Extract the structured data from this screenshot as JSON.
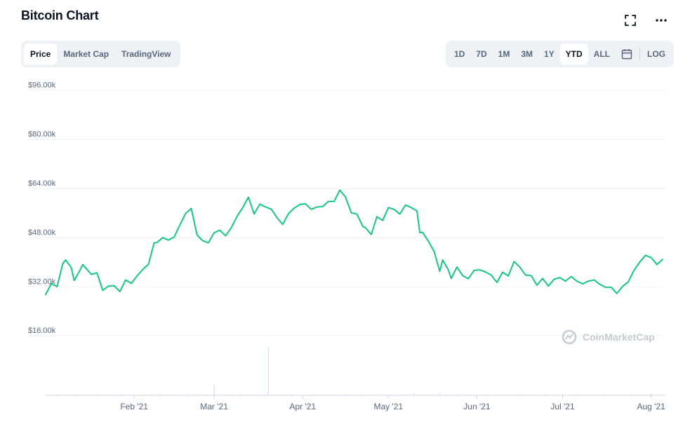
{
  "header": {
    "title": "Bitcoin Chart",
    "fullscreen_icon": "expand-icon",
    "more_icon": "more-horizontal-icon"
  },
  "tabs": [
    {
      "label": "Price",
      "active": true
    },
    {
      "label": "Market Cap",
      "active": false
    },
    {
      "label": "TradingView",
      "active": false
    }
  ],
  "ranges": [
    {
      "label": "1D",
      "active": false
    },
    {
      "label": "7D",
      "active": false
    },
    {
      "label": "1M",
      "active": false
    },
    {
      "label": "3M",
      "active": false
    },
    {
      "label": "1Y",
      "active": false
    },
    {
      "label": "YTD",
      "active": true
    },
    {
      "label": "ALL",
      "active": false
    }
  ],
  "calendar_icon": "calendar-icon",
  "log_label": "LOG",
  "watermark": "CoinMarketCap",
  "colors": {
    "line": "#16c784",
    "grid": "#eff2f5",
    "text": "#58667e",
    "volume": "#cfd6e4"
  },
  "chart_data": {
    "type": "line",
    "title": "",
    "xlabel": "",
    "ylabel": "",
    "ylim": [
      11000,
      98000
    ],
    "xlim": [
      "2021-01-01",
      "2021-08-06"
    ],
    "yticks": [
      {
        "value": 16000,
        "label": "$16.00k"
      },
      {
        "value": 32000,
        "label": "$32.00k"
      },
      {
        "value": 48000,
        "label": "$48.00k"
      },
      {
        "value": 64000,
        "label": "$64.00k"
      },
      {
        "value": 80000,
        "label": "$80.00k"
      },
      {
        "value": 96000,
        "label": "$96.00k"
      }
    ],
    "xticks": [
      {
        "date": "2021-02-01",
        "label": "Feb '21"
      },
      {
        "date": "2021-03-01",
        "label": "Mar '21"
      },
      {
        "date": "2021-04-01",
        "label": "Apr '21"
      },
      {
        "date": "2021-05-01",
        "label": "May '21"
      },
      {
        "date": "2021-06-01",
        "label": "Jun '21"
      },
      {
        "date": "2021-07-01",
        "label": "Jul '21"
      },
      {
        "date": "2021-08-01",
        "label": "Aug '21"
      }
    ],
    "grid": true,
    "series": [
      {
        "x": [
          "2021-01-01",
          "2021-01-03",
          "2021-01-05",
          "2021-01-07",
          "2021-01-08",
          "2021-01-10",
          "2021-01-11",
          "2021-01-13",
          "2021-01-14",
          "2021-01-17",
          "2021-01-19",
          "2021-01-21",
          "2021-01-23",
          "2021-01-25",
          "2021-01-27",
          "2021-01-29",
          "2021-01-31",
          "2021-02-02",
          "2021-02-04",
          "2021-02-06",
          "2021-02-08",
          "2021-02-09",
          "2021-02-11",
          "2021-02-13",
          "2021-02-15",
          "2021-02-17",
          "2021-02-19",
          "2021-02-21",
          "2021-02-23",
          "2021-02-25",
          "2021-02-27",
          "2021-03-01",
          "2021-03-03",
          "2021-03-05",
          "2021-03-07",
          "2021-03-09",
          "2021-03-11",
          "2021-03-13",
          "2021-03-15",
          "2021-03-17",
          "2021-03-19",
          "2021-03-21",
          "2021-03-23",
          "2021-03-25",
          "2021-03-27",
          "2021-03-29",
          "2021-03-31",
          "2021-04-02",
          "2021-04-04",
          "2021-04-06",
          "2021-04-08",
          "2021-04-10",
          "2021-04-12",
          "2021-04-14",
          "2021-04-16",
          "2021-04-18",
          "2021-04-20",
          "2021-04-22",
          "2021-04-23",
          "2021-04-25",
          "2021-04-27",
          "2021-04-29",
          "2021-05-01",
          "2021-05-03",
          "2021-05-05",
          "2021-05-07",
          "2021-05-09",
          "2021-05-11",
          "2021-05-12",
          "2021-05-13",
          "2021-05-15",
          "2021-05-17",
          "2021-05-19",
          "2021-05-20",
          "2021-05-22",
          "2021-05-23",
          "2021-05-25",
          "2021-05-27",
          "2021-05-29",
          "2021-05-31",
          "2021-06-02",
          "2021-06-04",
          "2021-06-06",
          "2021-06-08",
          "2021-06-10",
          "2021-06-12",
          "2021-06-14",
          "2021-06-16",
          "2021-06-18",
          "2021-06-20",
          "2021-06-22",
          "2021-06-24",
          "2021-06-26",
          "2021-06-28",
          "2021-06-30",
          "2021-07-02",
          "2021-07-04",
          "2021-07-06",
          "2021-07-08",
          "2021-07-10",
          "2021-07-12",
          "2021-07-14",
          "2021-07-16",
          "2021-07-18",
          "2021-07-20",
          "2021-07-22",
          "2021-07-24",
          "2021-07-26",
          "2021-07-28",
          "2021-07-30",
          "2021-08-01",
          "2021-08-03",
          "2021-08-05"
        ],
        "y": [
          29400,
          33000,
          32000,
          39500,
          40700,
          38200,
          34000,
          37300,
          39200,
          36000,
          36500,
          30800,
          32200,
          32300,
          30400,
          34200,
          33100,
          35500,
          37600,
          39300,
          46300,
          46400,
          48000,
          47200,
          48200,
          52100,
          55900,
          57500,
          48900,
          47000,
          46300,
          49600,
          50400,
          48600,
          51200,
          54900,
          57800,
          61200,
          55700,
          58900,
          58000,
          57300,
          54500,
          52300,
          55800,
          57600,
          58800,
          59000,
          57200,
          58000,
          58100,
          59800,
          59800,
          63500,
          61200,
          56100,
          55700,
          51700,
          51200,
          49000,
          54800,
          53600,
          57800,
          57200,
          55700,
          58600,
          57800,
          56700,
          49600,
          49700,
          46800,
          43500,
          37000,
          40700,
          37500,
          34700,
          38400,
          35600,
          34600,
          37300,
          37500,
          36800,
          35800,
          33400,
          36700,
          35500,
          40200,
          38400,
          35800,
          35600,
          32500,
          34700,
          32200,
          34400,
          35000,
          33800,
          35300,
          33800,
          32900,
          33800,
          34200,
          32800,
          31800,
          31800,
          29800,
          32100,
          33600,
          37300,
          40000,
          42200,
          41500,
          39200,
          40900
        ]
      },
      {
        "name": "",
        "kind": "volume-bars",
        "x": [
          "2021-01-05",
          "2021-01-12",
          "2021-01-20",
          "2021-01-28",
          "2021-02-05",
          "2021-02-10",
          "2021-02-20",
          "2021-02-26",
          "2021-03-01",
          "2021-03-10",
          "2021-03-20",
          "2021-03-28",
          "2021-04-05",
          "2021-04-15",
          "2021-04-22",
          "2021-04-30",
          "2021-05-10",
          "2021-05-19",
          "2021-05-25",
          "2021-06-05",
          "2021-06-15",
          "2021-06-25",
          "2021-07-05",
          "2021-07-15",
          "2021-07-25",
          "2021-08-01"
        ],
        "y": [
          2,
          1,
          1,
          2,
          1,
          3,
          2,
          1,
          16,
          2,
          72,
          2,
          1,
          1,
          2,
          1,
          3,
          4,
          2,
          2,
          1,
          2,
          1,
          1,
          2,
          3
        ]
      }
    ]
  }
}
